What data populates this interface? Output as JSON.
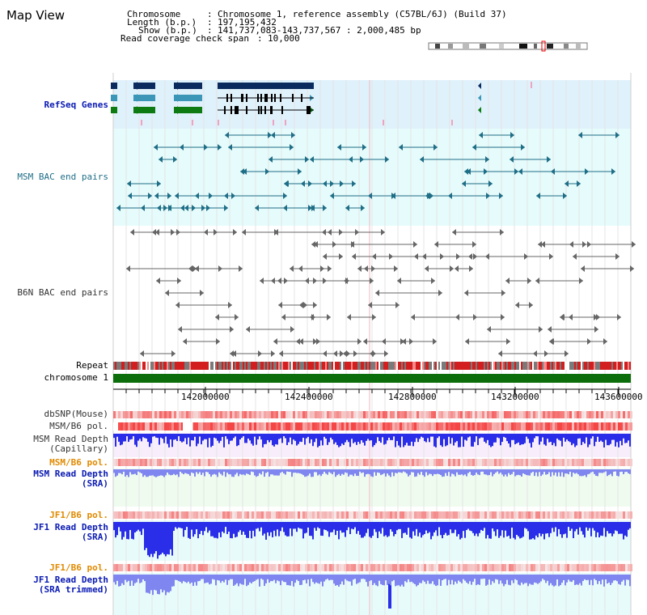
{
  "title": "Map View",
  "info": {
    "chromosome_key": "Chromosome",
    "chromosome_value": "Chromosome 1, reference assembly (C57BL/6J) (Build 37)",
    "length_key": "Length (b.p.)",
    "length_value": "197,195,432",
    "show_key": "Show (b.p.)",
    "show_value": "141,737,083-143,737,567 : 2,000,485 bp",
    "coverage_key": "Read coverage check span",
    "coverage_value": "10,000",
    "sep": ":"
  },
  "tracks": {
    "refseq": "RefSeq Genes",
    "msm_bac": "MSM BAC end pairs",
    "b6n_bac": "B6N BAC end pairs",
    "repeat": "Repeat",
    "chromosome": "chromosome 1",
    "dbsnp": "dbSNP(Mouse)",
    "msm_pol1": "MSM/B6 pol.",
    "msm_depth_cap_1": "MSM Read Depth",
    "msm_depth_cap_2": "(Capillary)",
    "msm_pol2": "MSM/B6 pol.",
    "msm_depth_sra_1": "MSM Read Depth",
    "msm_depth_sra_2": "(SRA)",
    "jf1_pol1": "JF1/B6 pol.",
    "jf1_depth_sra_1": "JF1 Read Depth",
    "jf1_depth_sra_2": "(SRA)",
    "jf1_pol2": "JF1/B6 pol.",
    "jf1_depth_trim_1": "JF1 Read Depth",
    "jf1_depth_trim_2": "(SRA trimmed)"
  },
  "ruler": {
    "ticks": [
      "142000000",
      "142400000",
      "142800000",
      "143200000",
      "143600000"
    ]
  },
  "colors": {
    "refseq_bg": "#dff1fb",
    "msm_bg": "#e6fbfb",
    "depth_blue": "#2a2ee8",
    "depth_light": "#7f86f0",
    "pol_red": "#f04848",
    "chrom_green": "#0b6e0b",
    "gene_navy": "#0b2b5e",
    "gene_teal": "#3b96b8",
    "gene_green": "#0d7a12"
  }
}
